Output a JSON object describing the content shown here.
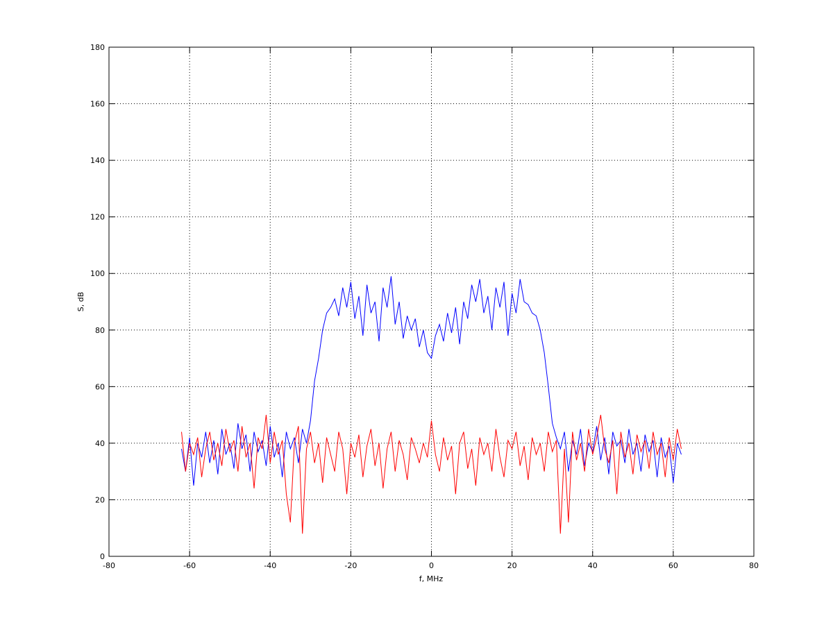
{
  "chart_data": {
    "type": "line",
    "x_label": "f, MHz",
    "y_label": "S, dB",
    "xlim": [
      -80,
      80
    ],
    "ylim": [
      0,
      180
    ],
    "xticks": [
      -80,
      -60,
      -40,
      -20,
      0,
      20,
      40,
      60,
      80
    ],
    "yticks": [
      0,
      20,
      40,
      60,
      80,
      100,
      120,
      140,
      160,
      180
    ],
    "grid": true,
    "x": [
      -62,
      -61,
      -60,
      -59,
      -58,
      -57,
      -56,
      -55,
      -54,
      -53,
      -52,
      -51,
      -50,
      -49,
      -48,
      -47,
      -46,
      -45,
      -44,
      -43,
      -42,
      -41,
      -40,
      -39,
      -38,
      -37,
      -36,
      -35,
      -34,
      -33,
      -32,
      -31,
      -30,
      -29,
      -28,
      -27,
      -26,
      -25,
      -24,
      -23,
      -22,
      -21,
      -20,
      -19,
      -18,
      -17,
      -16,
      -15,
      -14,
      -13,
      -12,
      -11,
      -10,
      -9,
      -8,
      -7,
      -6,
      -5,
      -4,
      -3,
      -2,
      -1,
      0,
      1,
      2,
      3,
      4,
      5,
      6,
      7,
      8,
      9,
      10,
      11,
      12,
      13,
      14,
      15,
      16,
      17,
      18,
      19,
      20,
      21,
      22,
      23,
      24,
      25,
      26,
      27,
      28,
      29,
      30,
      31,
      32,
      33,
      34,
      35,
      36,
      37,
      38,
      39,
      40,
      41,
      42,
      43,
      44,
      45,
      46,
      47,
      48,
      49,
      50,
      51,
      52,
      53,
      54,
      55,
      56,
      57,
      58,
      59,
      60,
      61,
      62
    ],
    "series": [
      {
        "color": "#0000ff",
        "values": [
          38,
          30,
          42,
          25,
          40,
          35,
          44,
          33,
          41,
          29,
          45,
          36,
          40,
          31,
          47,
          38,
          43,
          30,
          44,
          37,
          41,
          32,
          46,
          35,
          40,
          28,
          44,
          38,
          42,
          33,
          45,
          40,
          48,
          62,
          70,
          80,
          86,
          88,
          91,
          85,
          95,
          88,
          97,
          84,
          92,
          78,
          96,
          86,
          90,
          76,
          95,
          88,
          99,
          82,
          90,
          77,
          85,
          80,
          84,
          74,
          80,
          72,
          70,
          78,
          82,
          76,
          86,
          79,
          88,
          75,
          90,
          84,
          96,
          90,
          98,
          86,
          92,
          80,
          95,
          88,
          97,
          78,
          93,
          86,
          98,
          90,
          89,
          86,
          85,
          80,
          72,
          60,
          47,
          42,
          38,
          44,
          30,
          41,
          36,
          45,
          32,
          40,
          37,
          46,
          34,
          42,
          29,
          44,
          39,
          41,
          33,
          45,
          36,
          40,
          30,
          43,
          37,
          41,
          28,
          42,
          35,
          39,
          26,
          40,
          36
        ]
      },
      {
        "color": "#ff0000",
        "values": [
          44,
          30,
          40,
          36,
          42,
          28,
          38,
          44,
          34,
          40,
          32,
          45,
          37,
          41,
          30,
          46,
          35,
          40,
          24,
          42,
          38,
          50,
          33,
          44,
          36,
          41,
          22,
          12,
          40,
          46,
          8,
          38,
          44,
          33,
          40,
          26,
          42,
          36,
          30,
          44,
          38,
          22,
          40,
          35,
          43,
          28,
          39,
          45,
          32,
          40,
          24,
          38,
          44,
          30,
          41,
          36,
          27,
          42,
          38,
          33,
          40,
          35,
          48,
          36,
          30,
          42,
          34,
          39,
          22,
          40,
          44,
          31,
          38,
          25,
          42,
          36,
          40,
          30,
          45,
          35,
          28,
          41,
          38,
          44,
          32,
          39,
          27,
          42,
          36,
          40,
          30,
          44,
          37,
          41,
          8,
          38,
          12,
          44,
          34,
          40,
          30,
          45,
          36,
          42,
          50,
          38,
          33,
          41,
          22,
          44,
          35,
          40,
          29,
          43,
          37,
          41,
          31,
          44,
          36,
          40,
          28,
          42,
          34,
          45,
          38
        ]
      }
    ]
  }
}
